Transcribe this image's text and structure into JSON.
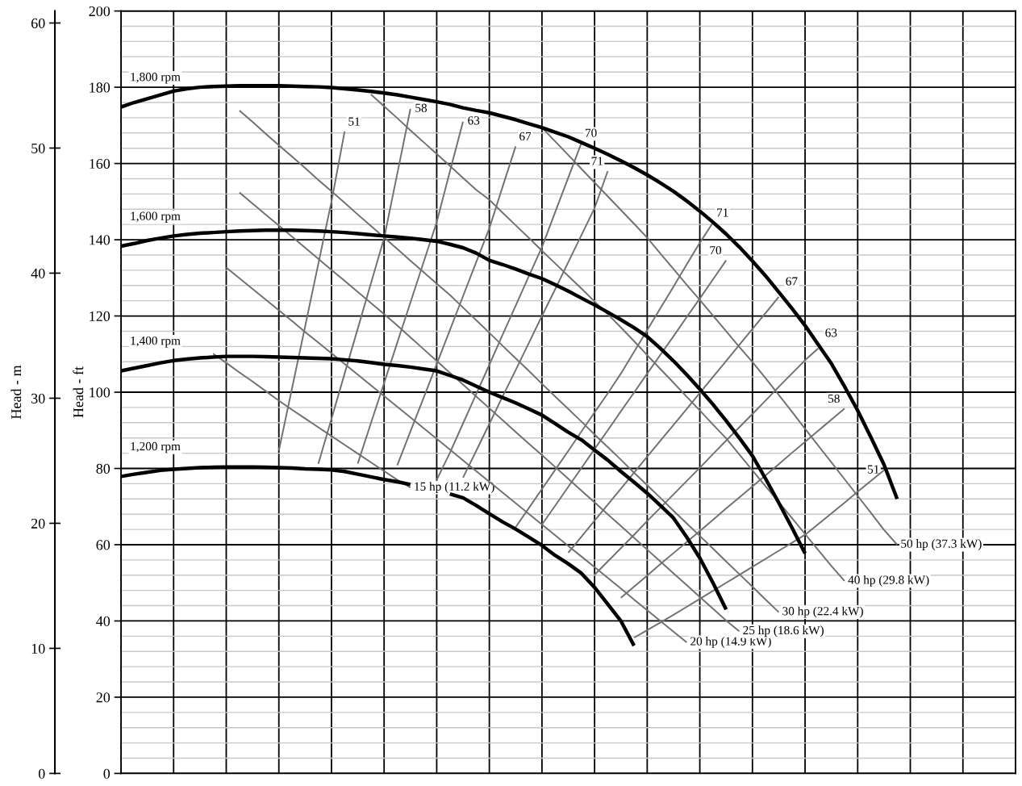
{
  "chart_data": {
    "type": "line",
    "ylabel": "Head - ft",
    "y2label": "Head - m",
    "ylim": [
      0,
      200
    ],
    "yticks": [
      0,
      20,
      40,
      60,
      80,
      100,
      120,
      140,
      160,
      180,
      200
    ],
    "y2lim": [
      0,
      60.96
    ],
    "y2ticks": [
      0,
      10,
      20,
      30,
      40,
      50,
      60
    ],
    "grid": true,
    "legend": false,
    "marker": "none",
    "line_style": "solid",
    "categories": [
      null,
      null,
      null,
      null,
      null,
      null,
      null,
      null,
      null,
      null,
      null,
      null,
      null,
      null,
      null,
      null,
      null,
      null,
      null,
      null,
      null,
      null,
      null,
      null,
      null,
      null,
      null,
      null,
      null,
      null,
      null,
      null,
      null,
      null,
      null,
      null,
      null,
      null,
      null,
      null,
      null,
      null,
      null,
      null,
      null,
      null,
      null,
      null,
      null,
      null,
      null,
      null,
      null,
      null,
      null,
      null,
      null,
      null,
      null,
      null,
      null,
      null,
      null,
      null,
      null,
      null,
      null,
      null,
      null
    ],
    "series": [
      {
        "name": "15 hp (11.2 kW)",
        "color": "#707070",
        "values": [
          null,
          null,
          null,
          null,
          null,
          null,
          null,
          110.1,
          107.7,
          105.2,
          102.8,
          100.3,
          97.8,
          95.4,
          93.1,
          90.8,
          88.5,
          86.2,
          83.9,
          81.6,
          79.3,
          77,
          75,
          null,
          null,
          null,
          null,
          null,
          null,
          null,
          null,
          null,
          null,
          null,
          null,
          null,
          null,
          null,
          null,
          null,
          null,
          null,
          null,
          null,
          null,
          null,
          null,
          null,
          null,
          null,
          null,
          null,
          null,
          null,
          null,
          null,
          null,
          null,
          null,
          null,
          null,
          null,
          null,
          null,
          null,
          null,
          null,
          null,
          null
        ]
      },
      {
        "name": "20 hp (14.9 kW)",
        "color": "#707070",
        "values": [
          null,
          null,
          null,
          null,
          null,
          null,
          null,
          null,
          132.7,
          129.9,
          127.1,
          124.3,
          121.5,
          118.7,
          115.8,
          113,
          110.2,
          107.4,
          104.6,
          101.8,
          99,
          96.2,
          93.4,
          90.6,
          87.8,
          85,
          82.1,
          79.3,
          76.5,
          73.7,
          70.9,
          68.1,
          65.3,
          62.5,
          59.7,
          56.9,
          54.1,
          51.3,
          48.5,
          45.6,
          42.8,
          40,
          37.2,
          34.4,
          null,
          null,
          null,
          null,
          null,
          null,
          null,
          null,
          null,
          null,
          null,
          null,
          null,
          null,
          null,
          null,
          null,
          null,
          null,
          null,
          null,
          null,
          null,
          null,
          null
        ]
      },
      {
        "name": "25 hp (18.6 kW)",
        "color": "#707070",
        "values": [
          null,
          null,
          null,
          null,
          null,
          null,
          null,
          null,
          null,
          152.4,
          149.5,
          146.6,
          143.7,
          140.8,
          137.9,
          135,
          132.1,
          129.2,
          126.3,
          123.4,
          120.5,
          117.5,
          114.4,
          111.3,
          108.2,
          105.1,
          102,
          98.9,
          95.8,
          92.7,
          89.6,
          86.5,
          83.5,
          80.4,
          77.3,
          74.2,
          71.1,
          68,
          64.9,
          61.8,
          58.7,
          55.6,
          52.5,
          49.4,
          46.3,
          43.2,
          40.1,
          37.3,
          null,
          null,
          null,
          null,
          null,
          null,
          null,
          null,
          null,
          null,
          null,
          null,
          null,
          null,
          null,
          null,
          null,
          null,
          null,
          null,
          null
        ]
      },
      {
        "name": "30 hp (22.4 kW)",
        "color": "#707070",
        "values": [
          null,
          null,
          null,
          null,
          null,
          null,
          null,
          null,
          null,
          173.9,
          170.9,
          167.8,
          164.8,
          161.8,
          158.8,
          155.7,
          152.7,
          149.7,
          146.6,
          143.6,
          140.6,
          137.6,
          134.5,
          131.5,
          128.5,
          125.5,
          122.2,
          118.9,
          115.6,
          112.2,
          108.9,
          105.6,
          102.2,
          98.9,
          95.6,
          92.3,
          88.9,
          85.6,
          82.3,
          78.9,
          75.6,
          72.3,
          68.9,
          65.6,
          62.3,
          59,
          55.6,
          52.3,
          49,
          45.6,
          42.3,
          null,
          null,
          null,
          null,
          null,
          null,
          null,
          null,
          null,
          null,
          null,
          null,
          null,
          null,
          null,
          null,
          null,
          null
        ]
      },
      {
        "name": "40 hp (29.8 kW)",
        "color": "#707070",
        "values": [
          null,
          null,
          null,
          null,
          null,
          null,
          null,
          null,
          null,
          null,
          null,
          null,
          null,
          null,
          null,
          null,
          null,
          null,
          null,
          178.1,
          175,
          171.9,
          168.7,
          165.6,
          162.5,
          159.4,
          156.2,
          153.1,
          150.5,
          147.1,
          143.8,
          140.5,
          137.1,
          133.8,
          130.5,
          127.2,
          123.8,
          120.5,
          117,
          113.4,
          109.7,
          106.1,
          102.5,
          98.8,
          95.2,
          91.5,
          87.9,
          83.7,
          79.5,
          75.3,
          71.2,
          67,
          62.8,
          58.6,
          54.4,
          50.5,
          null,
          null,
          null,
          null,
          null,
          null,
          null,
          null,
          null,
          null,
          null,
          null,
          null
        ]
      },
      {
        "name": "50 hp (37.3 kW)",
        "color": "#707070",
        "values": [
          null,
          null,
          null,
          null,
          null,
          null,
          null,
          null,
          null,
          null,
          null,
          null,
          null,
          null,
          null,
          null,
          null,
          null,
          null,
          null,
          null,
          null,
          null,
          null,
          null,
          null,
          null,
          null,
          null,
          null,
          null,
          null,
          169.4,
          165.8,
          162.2,
          158.6,
          155,
          151.4,
          147.8,
          144.2,
          140.5,
          136.4,
          132.3,
          128.2,
          124.2,
          120.1,
          116,
          111.9,
          107.9,
          103.7,
          99.3,
          94.9,
          90.4,
          86,
          81.6,
          77.2,
          72.8,
          68.4,
          63.9,
          60,
          null,
          null,
          null,
          null,
          null,
          null,
          null,
          null,
          null
        ]
      },
      {
        "name": "51",
        "color": "#707070",
        "values": [
          null,
          null,
          null,
          null,
          null,
          null,
          null,
          null,
          null,
          null,
          null,
          null,
          84.7,
          101,
          117.3,
          133.7,
          150,
          168.4,
          null,
          null,
          null,
          null,
          null,
          null,
          null,
          null,
          null,
          null,
          null,
          null,
          null,
          null,
          null,
          null,
          null,
          null,
          null,
          null,
          null,
          null,
          null,
          null,
          null,
          null,
          null,
          null,
          null,
          null,
          null,
          null,
          null,
          null,
          null,
          null,
          null,
          null,
          null,
          null,
          null,
          null,
          null,
          null,
          null,
          null,
          null,
          null,
          null,
          null,
          null
        ]
      },
      {
        "name": "58",
        "color": "#707070",
        "values": [
          null,
          null,
          null,
          null,
          null,
          null,
          null,
          null,
          null,
          null,
          null,
          null,
          null,
          null,
          null,
          81.2,
          93,
          104.9,
          116.7,
          128.6,
          140.4,
          157.3,
          174.3,
          null,
          null,
          null,
          null,
          null,
          null,
          null,
          null,
          null,
          null,
          null,
          null,
          null,
          null,
          null,
          null,
          null,
          null,
          null,
          null,
          null,
          null,
          null,
          null,
          null,
          null,
          null,
          null,
          null,
          null,
          null,
          null,
          null,
          null,
          null,
          null,
          null,
          null,
          null,
          null,
          null,
          null,
          null,
          null,
          null,
          null
        ]
      },
      {
        "name": "63",
        "color": "#707070",
        "values": [
          null,
          null,
          null,
          null,
          null,
          null,
          null,
          null,
          null,
          null,
          null,
          null,
          null,
          null,
          null,
          null,
          null,
          null,
          81.3,
          91.9,
          102.4,
          113,
          123.5,
          134.1,
          144.6,
          157.9,
          171,
          null,
          null,
          null,
          null,
          null,
          null,
          null,
          null,
          null,
          null,
          null,
          null,
          null,
          null,
          null,
          null,
          null,
          null,
          null,
          null,
          null,
          null,
          null,
          null,
          null,
          null,
          null,
          null,
          null,
          null,
          null,
          null,
          null,
          null,
          null,
          null,
          null,
          null,
          null,
          null,
          null,
          null
        ]
      },
      {
        "name": "67",
        "color": "#707070",
        "values": [
          null,
          null,
          null,
          null,
          null,
          null,
          null,
          null,
          null,
          null,
          null,
          null,
          null,
          null,
          null,
          null,
          null,
          null,
          null,
          null,
          null,
          80.8,
          89.7,
          98.5,
          107.4,
          116.3,
          125.2,
          134.1,
          143,
          153.8,
          164.5,
          null,
          null,
          null,
          null,
          null,
          null,
          null,
          null,
          null,
          null,
          null,
          null,
          null,
          null,
          null,
          null,
          null,
          null,
          null,
          null,
          null,
          null,
          null,
          null,
          null,
          null,
          null,
          null,
          null,
          null,
          null,
          null,
          null,
          null,
          null,
          null,
          null,
          null
        ]
      },
      {
        "name": "70",
        "color": "#707070",
        "values": [
          null,
          null,
          null,
          null,
          null,
          null,
          null,
          null,
          null,
          null,
          null,
          null,
          null,
          null,
          null,
          null,
          null,
          null,
          null,
          null,
          null,
          null,
          null,
          null,
          77,
          84.1,
          91.8,
          99.5,
          107.2,
          115,
          122.7,
          130.4,
          138.1,
          147.2,
          156.3,
          165.4,
          null,
          null,
          null,
          null,
          null,
          null,
          null,
          null,
          null,
          null,
          null,
          null,
          null,
          null,
          null,
          null,
          null,
          null,
          null,
          null,
          null,
          null,
          null,
          null,
          null,
          null,
          null,
          null,
          null,
          null,
          null,
          null,
          null
        ]
      },
      {
        "name": "71",
        "color": "#707070",
        "values": [
          null,
          null,
          null,
          null,
          null,
          null,
          null,
          null,
          null,
          null,
          null,
          null,
          null,
          null,
          null,
          null,
          null,
          null,
          null,
          null,
          null,
          null,
          null,
          null,
          null,
          null,
          77.6,
          84.6,
          91.7,
          98.8,
          105.8,
          112.9,
          120,
          127,
          134.1,
          141.2,
          148.3,
          158,
          null,
          null,
          null,
          null,
          null,
          null,
          null,
          null,
          null,
          null,
          null,
          null,
          null,
          null,
          null,
          null,
          null,
          null,
          null,
          null,
          null,
          null,
          null,
          null,
          null,
          null,
          null,
          null,
          null,
          null,
          null
        ]
      },
      {
        "name": "71",
        "color": "#707070",
        "values": [
          null,
          null,
          null,
          null,
          null,
          null,
          null,
          null,
          null,
          null,
          null,
          null,
          null,
          null,
          null,
          null,
          null,
          null,
          null,
          null,
          null,
          null,
          null,
          null,
          null,
          null,
          null,
          null,
          null,
          null,
          64.6,
          69.6,
          74.6,
          79.6,
          84.6,
          89.7,
          94.7,
          99.7,
          104.9,
          110.6,
          116.3,
          122,
          127.7,
          133.5,
          139.2,
          144.5,
          null,
          null,
          null,
          null,
          null,
          null,
          null,
          null,
          null,
          null,
          null,
          null,
          null,
          null,
          null,
          null,
          null,
          null,
          null,
          null,
          null,
          null,
          null
        ]
      },
      {
        "name": "70",
        "color": "#707070",
        "values": [
          null,
          null,
          null,
          null,
          null,
          null,
          null,
          null,
          null,
          null,
          null,
          null,
          null,
          null,
          null,
          null,
          null,
          null,
          null,
          null,
          null,
          null,
          null,
          null,
          null,
          null,
          null,
          null,
          null,
          null,
          null,
          null,
          65.3,
          70.2,
          75.2,
          80.1,
          85.1,
          90,
          95,
          99.9,
          104.9,
          109.8,
          114.7,
          119.7,
          124.6,
          129.6,
          134.6,
          null,
          null,
          null,
          null,
          null,
          null,
          null,
          null,
          null,
          null,
          null,
          null,
          null,
          null,
          null,
          null,
          null,
          null,
          null,
          null,
          null,
          null
        ]
      },
      {
        "name": "67",
        "color": "#707070",
        "values": [
          null,
          null,
          null,
          null,
          null,
          null,
          null,
          null,
          null,
          null,
          null,
          null,
          null,
          null,
          null,
          null,
          null,
          null,
          null,
          null,
          null,
          null,
          null,
          null,
          null,
          null,
          null,
          null,
          null,
          null,
          null,
          null,
          null,
          null,
          57.9,
          62.1,
          66.3,
          70.5,
          74.7,
          78.9,
          83.1,
          87.3,
          91.4,
          95.6,
          99.8,
          104,
          108.2,
          112.4,
          116.6,
          120.8,
          125,
          null,
          null,
          null,
          null,
          null,
          null,
          null,
          null,
          null,
          null,
          null,
          null,
          null,
          null,
          null,
          null,
          null,
          null
        ]
      },
      {
        "name": "63",
        "color": "#707070",
        "values": [
          null,
          null,
          null,
          null,
          null,
          null,
          null,
          null,
          null,
          null,
          null,
          null,
          null,
          null,
          null,
          null,
          null,
          null,
          null,
          null,
          null,
          null,
          null,
          null,
          null,
          null,
          null,
          null,
          null,
          null,
          null,
          null,
          null,
          null,
          null,
          null,
          52.1,
          55.6,
          59.1,
          62.6,
          66.2,
          69.7,
          73.2,
          76.7,
          80.2,
          83.8,
          87.3,
          90.8,
          94.3,
          97.8,
          101.4,
          104.9,
          108.4,
          111.5,
          null,
          null,
          null,
          null,
          null,
          null,
          null,
          null,
          null,
          null,
          null,
          null,
          null,
          null,
          null
        ]
      },
      {
        "name": "58",
        "color": "#707070",
        "values": [
          null,
          null,
          null,
          null,
          null,
          null,
          null,
          null,
          null,
          null,
          null,
          null,
          null,
          null,
          null,
          null,
          null,
          null,
          null,
          null,
          null,
          null,
          null,
          null,
          null,
          null,
          null,
          null,
          null,
          null,
          null,
          null,
          null,
          null,
          null,
          null,
          null,
          null,
          46.1,
          49,
          51.9,
          54.9,
          57.8,
          60.7,
          63.6,
          66.5,
          69.5,
          72.4,
          75.3,
          78.2,
          81.1,
          84.1,
          87,
          89.9,
          92.8,
          95.7,
          null,
          null,
          null,
          null,
          null,
          null,
          null,
          null,
          null,
          null,
          null,
          null,
          null
        ]
      },
      {
        "name": "51",
        "color": "#707070",
        "values": [
          null,
          null,
          null,
          null,
          null,
          null,
          null,
          null,
          null,
          null,
          null,
          null,
          null,
          null,
          null,
          null,
          null,
          null,
          null,
          null,
          null,
          null,
          null,
          null,
          null,
          null,
          null,
          null,
          null,
          null,
          null,
          null,
          null,
          null,
          null,
          null,
          null,
          null,
          null,
          35.6,
          37.6,
          39.6,
          41.6,
          43.7,
          45.8,
          47.9,
          50,
          52.1,
          54.2,
          56.3,
          58.4,
          60.5,
          62.6,
          65.4,
          68.2,
          71,
          73.9,
          76.7,
          79.5,
          null,
          null,
          null,
          null,
          null,
          null,
          null,
          null,
          null,
          null
        ]
      },
      {
        "name": "1,800 rpm",
        "color": "#000000",
        "values": [
          174.8,
          176,
          177,
          178,
          179,
          179.6,
          180,
          180.2,
          180.3,
          180.4,
          180.4,
          180.4,
          180.4,
          180.3,
          180.2,
          180.1,
          179.9,
          179.6,
          179.3,
          178.9,
          178.5,
          178,
          177.4,
          176.8,
          176.2,
          175.5,
          174.6,
          173.9,
          173.3,
          172.4,
          171.5,
          170.4,
          169.4,
          168.2,
          167,
          165.5,
          164,
          162.4,
          160.7,
          158.9,
          157,
          154.9,
          152.7,
          150.2,
          147.5,
          144.6,
          141.5,
          138.1,
          134.4,
          130.5,
          126.3,
          122,
          117.5,
          112.5,
          107.5,
          101.5,
          95.2,
          88.2,
          81,
          72,
          null,
          null,
          null,
          null,
          null,
          null,
          null,
          null,
          null
        ]
      },
      {
        "name": "1,600 rpm",
        "color": "#000000",
        "values": [
          138.3,
          139,
          139.8,
          140.4,
          141,
          141.4,
          141.7,
          141.9,
          142.1,
          142.3,
          142.4,
          142.5,
          142.5,
          142.5,
          142.4,
          142.3,
          142.1,
          141.9,
          141.6,
          141.3,
          141,
          140.7,
          140.4,
          140,
          139.6,
          138.8,
          137.9,
          136.5,
          134.6,
          133.5,
          132.3,
          131,
          129.8,
          128.2,
          126.5,
          124.7,
          122.9,
          121,
          119,
          116.9,
          114.6,
          111.5,
          108.2,
          104.6,
          100.8,
          96.8,
          92.5,
          88,
          83.3,
          77.3,
          71,
          64.5,
          57.7,
          null,
          null,
          null,
          null,
          null,
          null,
          null,
          null,
          null,
          null,
          null,
          null,
          null,
          null,
          null,
          null
        ]
      },
      {
        "name": "1,400 rpm",
        "color": "#000000",
        "values": [
          105.6,
          106.3,
          107,
          107.7,
          108.3,
          108.7,
          109,
          109.2,
          109.4,
          109.4,
          109.4,
          109.3,
          109.2,
          109.1,
          109,
          108.9,
          108.8,
          108.5,
          108.2,
          107.8,
          107.3,
          107,
          106.6,
          106.1,
          105.6,
          104.4,
          103.2,
          101.6,
          100,
          98.6,
          97.2,
          95.6,
          94,
          91.8,
          89.5,
          87.5,
          84.8,
          82.2,
          79.2,
          76.4,
          73.5,
          70.3,
          67,
          62,
          56.5,
          50,
          43,
          null,
          null,
          null,
          null,
          null,
          null,
          null,
          null,
          null,
          null,
          null,
          null,
          null,
          null,
          null,
          null,
          null,
          null,
          null,
          null,
          null,
          null
        ]
      },
      {
        "name": "1,200 rpm",
        "color": "#000000",
        "values": [
          77.9,
          78.5,
          79,
          79.5,
          79.8,
          80,
          80.2,
          80.3,
          80.4,
          80.4,
          80.4,
          80.3,
          80.2,
          80.1,
          79.9,
          79.8,
          79.6,
          79.2,
          78.5,
          77.8,
          77.1,
          76.5,
          75.8,
          null,
          null,
          73.3,
          72.3,
          70.3,
          68.1,
          66,
          64.1,
          62,
          59.8,
          57.2,
          55,
          52.5,
          48.8,
          44.4,
          40,
          33.5,
          null,
          null,
          null,
          null,
          null,
          null,
          null,
          null,
          null,
          null,
          null,
          null,
          null,
          null,
          null,
          null,
          null,
          null,
          null,
          null,
          null,
          null,
          null,
          null,
          null,
          null,
          null,
          null,
          null
        ]
      }
    ]
  }
}
